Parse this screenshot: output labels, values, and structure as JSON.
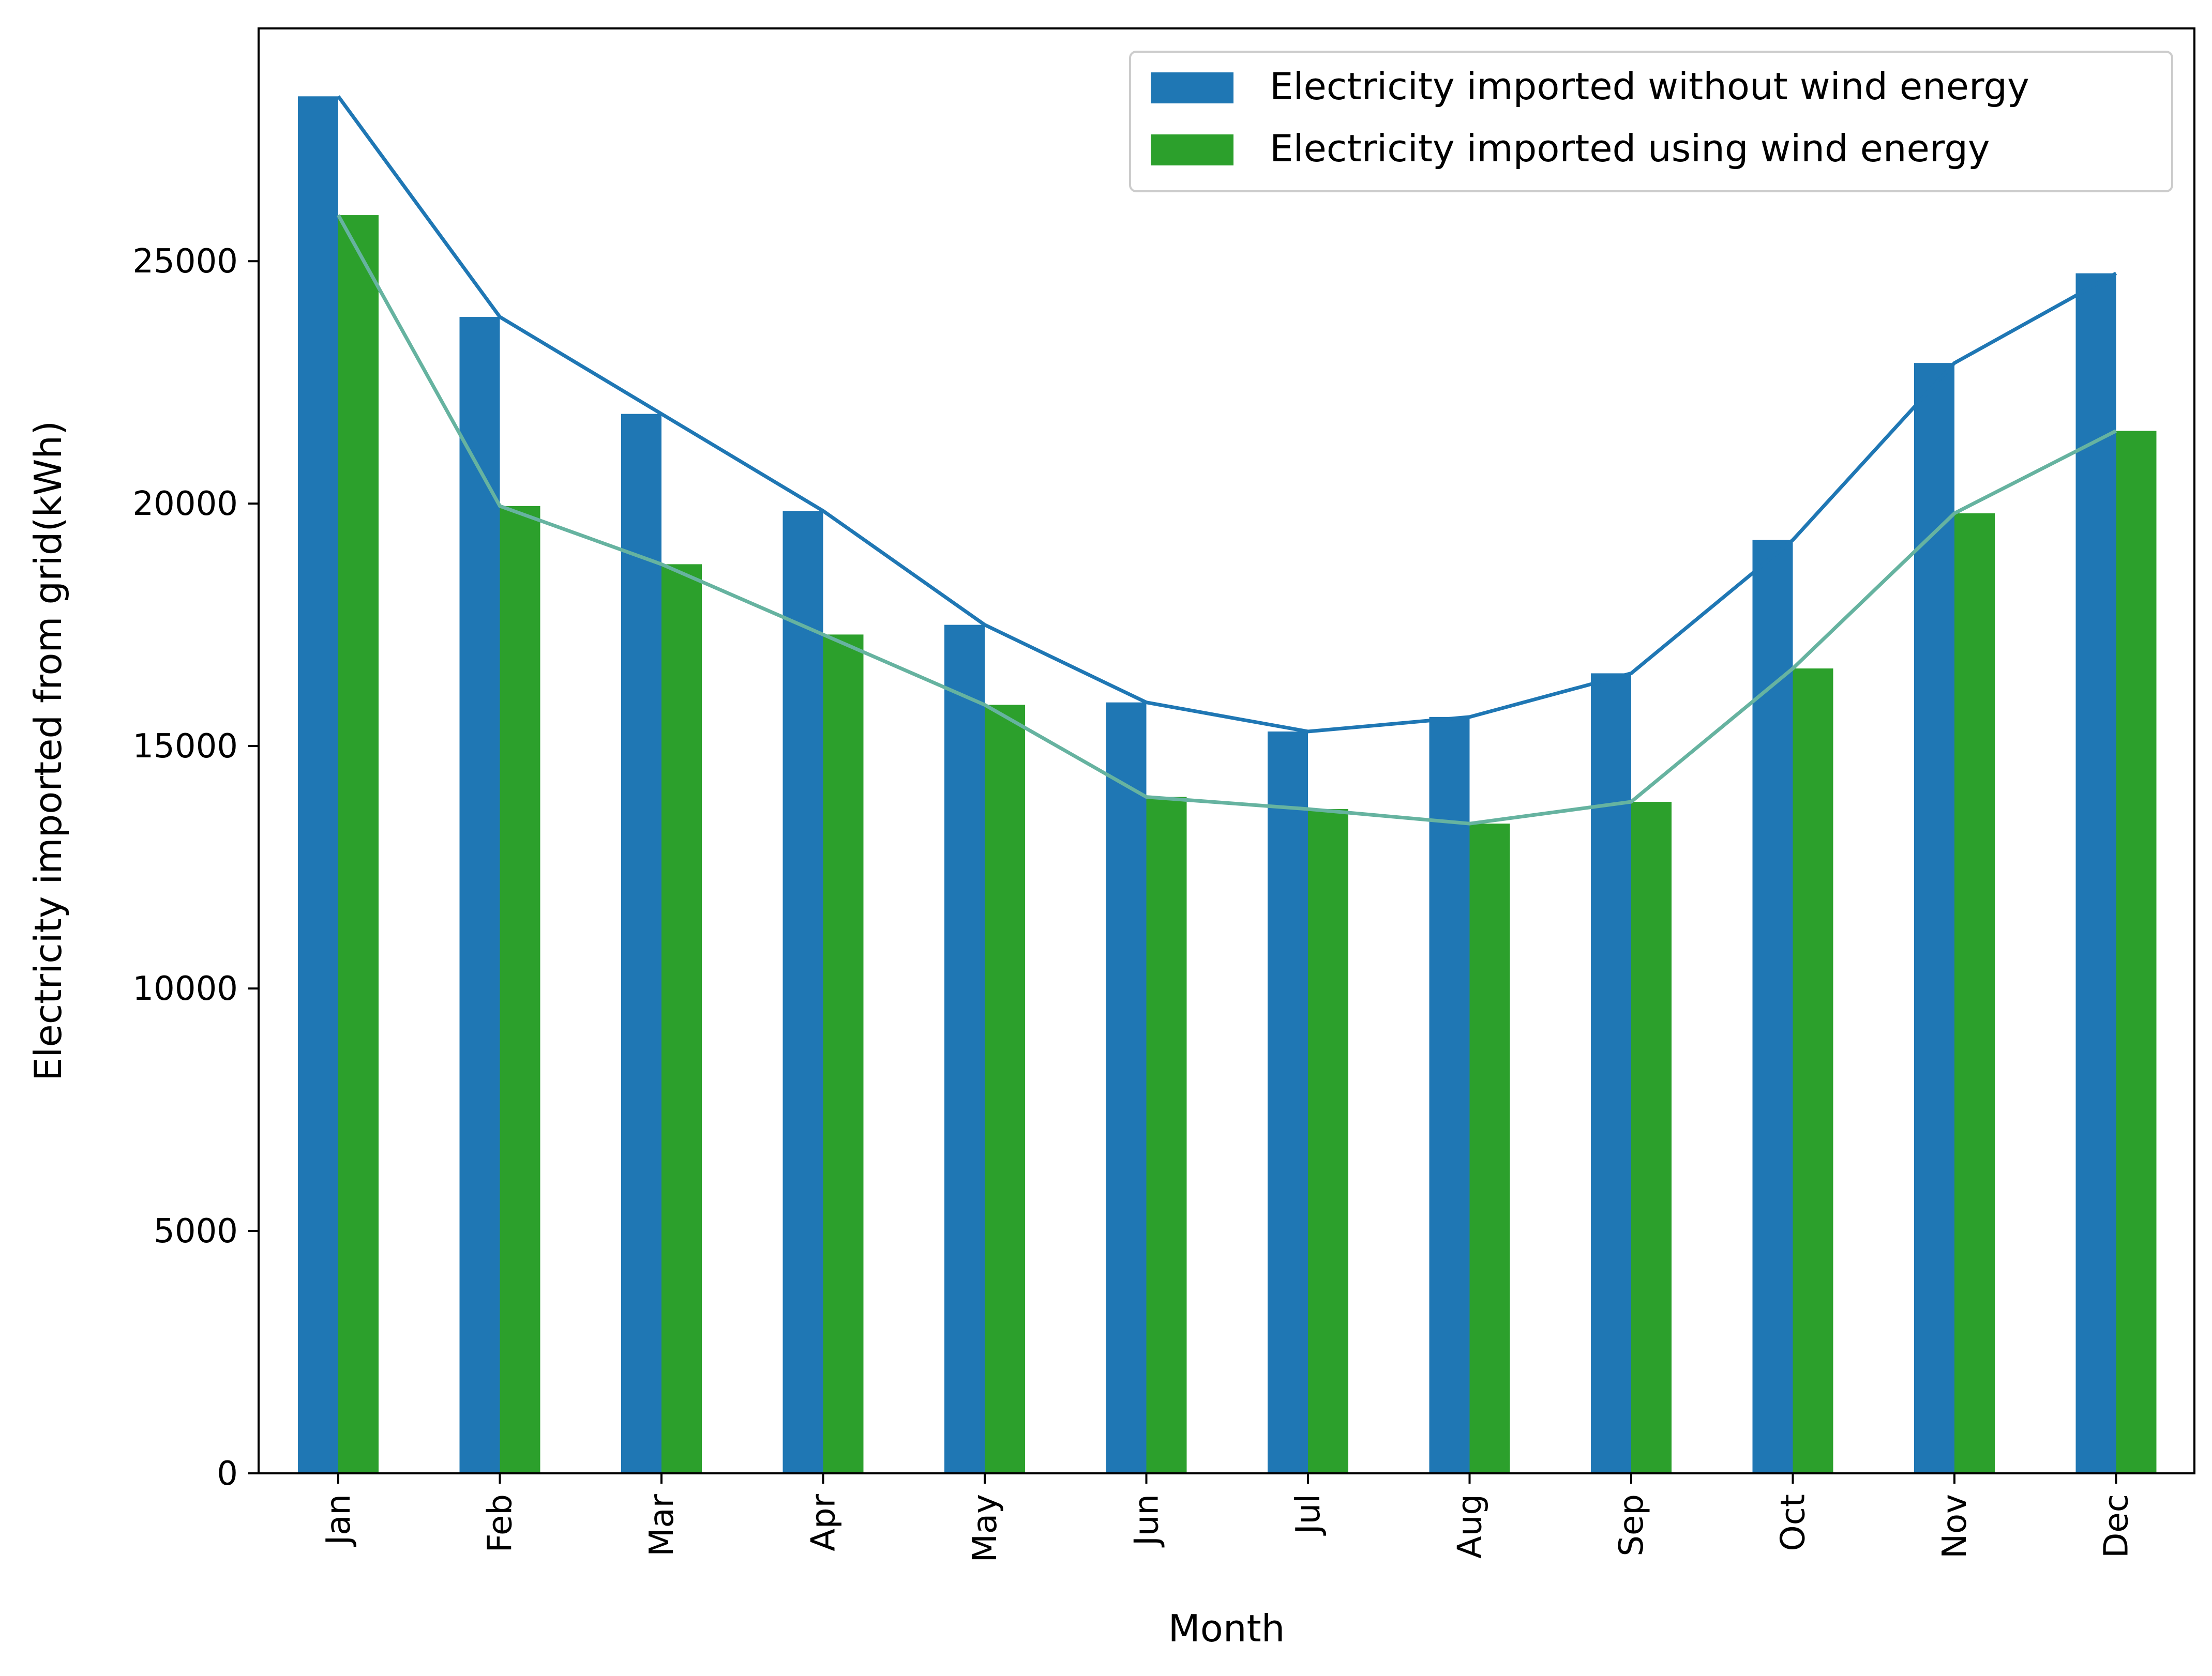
{
  "chart_data": {
    "type": "bar",
    "title": "",
    "xlabel": "Month",
    "ylabel": "Electricity imported from grid(kWh)",
    "categories": [
      "Jan",
      "Feb",
      "Mar",
      "Apr",
      "May",
      "Jun",
      "Jul",
      "Aug",
      "Sep",
      "Oct",
      "Nov",
      "Dec"
    ],
    "series": [
      {
        "name": "Electricity imported without wind energy",
        "color": "#1f77b4",
        "line_color": "#1f77b4",
        "values": [
          28400,
          23850,
          21850,
          19850,
          17500,
          15900,
          15300,
          15600,
          16500,
          19250,
          22900,
          24750
        ]
      },
      {
        "name": "Electricity imported using wind energy",
        "color": "#2ca02c",
        "line_color": "#66b3a0",
        "values": [
          25950,
          19950,
          18750,
          17300,
          15850,
          13950,
          13700,
          13400,
          13850,
          16600,
          19800,
          21500
        ]
      }
    ],
    "yticks": [
      0,
      5000,
      10000,
      15000,
      20000,
      25000
    ],
    "ylim": [
      0,
      29800
    ],
    "grid": false,
    "legend_position": "top-right",
    "overlay_lines": true
  }
}
